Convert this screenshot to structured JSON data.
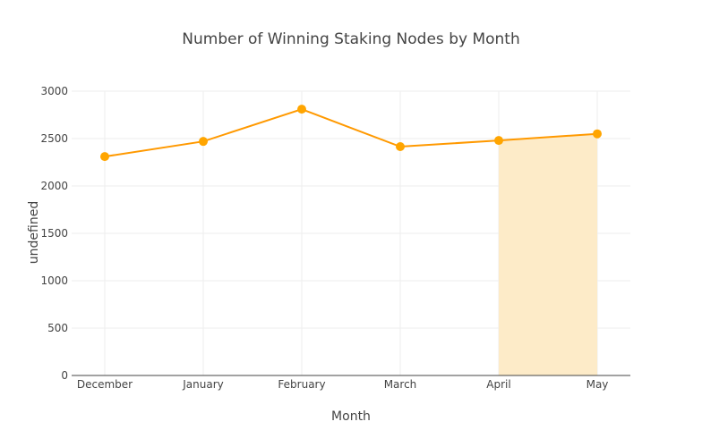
{
  "chart_data": {
    "type": "line",
    "title": "Number of Winning Staking Nodes by Month",
    "xlabel": "Month",
    "ylabel": "undefined",
    "categories": [
      "December",
      "January",
      "February",
      "March",
      "April",
      "May"
    ],
    "series": [
      {
        "name": "Winning Staking Nodes",
        "values": [
          2310,
          2470,
          2810,
          2415,
          2480,
          2550
        ],
        "color": "#ff9900"
      }
    ],
    "highlight": {
      "from": "April",
      "to": "May",
      "fill": "#fdebc8"
    },
    "ylim": [
      0,
      3000
    ],
    "yticks": [
      0,
      500,
      1000,
      1500,
      2000,
      2500,
      3000
    ],
    "grid": true,
    "legend": false
  },
  "colors": {
    "line": "#ff9900",
    "marker": "#ffa500",
    "fill": "#fdebc8",
    "grid": "#eeeeee",
    "axis": "#444444"
  }
}
